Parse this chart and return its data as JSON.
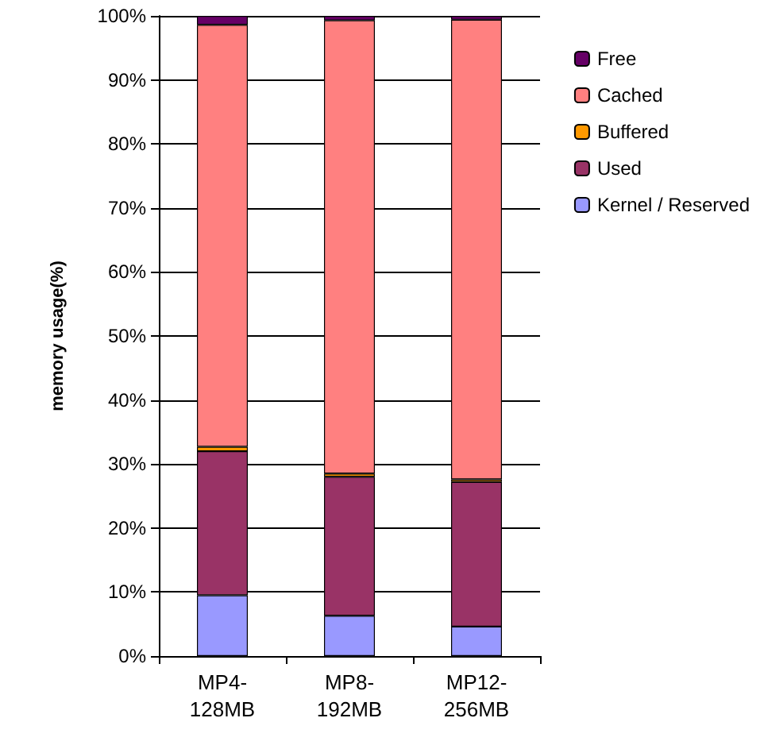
{
  "chart_data": {
    "type": "bar",
    "stacked": true,
    "ylabel": "memory usage(%)",
    "categories": [
      "MP4-128MB",
      "MP8-192MB",
      "MP12-256MB"
    ],
    "series": [
      {
        "name": "Kernel / Reserved",
        "color": "#9999ff",
        "values": [
          9.5,
          6.3,
          4.6
        ]
      },
      {
        "name": "Used",
        "color": "#993366",
        "values": [
          22.5,
          21.7,
          22.6
        ]
      },
      {
        "name": "Buffered",
        "color": "#ff9900",
        "values": [
          0.7,
          0.5,
          0.4
        ]
      },
      {
        "name": "Cached",
        "color": "#ff8080",
        "values": [
          65.9,
          70.8,
          71.8
        ]
      },
      {
        "name": "Free",
        "color": "#660066",
        "values": [
          1.4,
          0.7,
          0.6
        ]
      }
    ],
    "ylim": [
      0,
      100
    ],
    "yticks": [
      {
        "value": 0,
        "label": "0%"
      },
      {
        "value": 10,
        "label": "10%"
      },
      {
        "value": 20,
        "label": "20%"
      },
      {
        "value": 30,
        "label": "30%"
      },
      {
        "value": 40,
        "label": "40%"
      },
      {
        "value": 50,
        "label": "50%"
      },
      {
        "value": 60,
        "label": "60%"
      },
      {
        "value": 70,
        "label": "70%"
      },
      {
        "value": 80,
        "label": "80%"
      },
      {
        "value": 90,
        "label": "90%"
      },
      {
        "value": 100,
        "label": "100%"
      }
    ],
    "grid": "y",
    "legend": "right"
  }
}
